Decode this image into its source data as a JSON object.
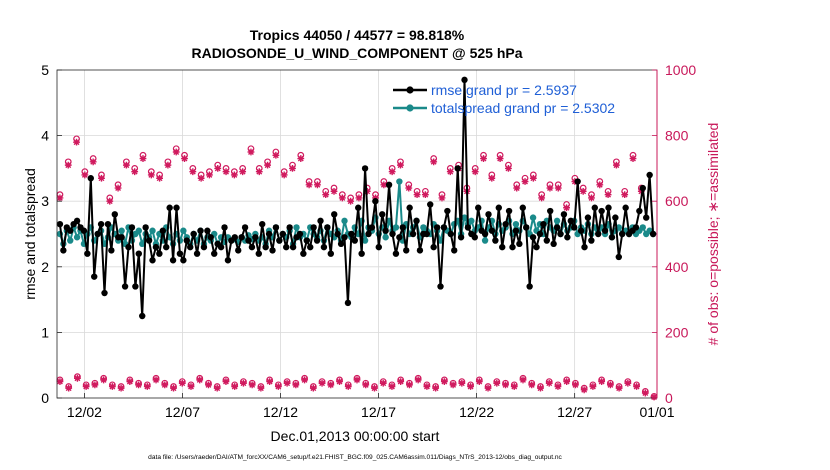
{
  "chart_data": {
    "type": "line",
    "title": "Tropics 44050 / 44577 = 98.818%",
    "subtitle": "RADIOSONDE_U_WIND_COMPONENT @ 525 hPa",
    "xlabel": "Dec.01,2013 00:00:00 start",
    "ylabel_left": "rmse and totalspread",
    "ylabel_right": "# of obs: o=possible; ∗=assimilated",
    "footer": "data file: /Users/raeder/DAI/ATM_forcXX/CAM6_setup/f.e21.FHIST_BGC.f09_025.CAM6assim.011/Diags_NTrS_2013-12/obs_diag_output.nc",
    "xlim": [
      0.6,
      31.2
    ],
    "ylim_left": [
      0,
      5
    ],
    "ylim_right": [
      0,
      1000
    ],
    "grid": true,
    "legend_position": "top-right",
    "x_ticks": [
      {
        "x": 2,
        "label": "12/02"
      },
      {
        "x": 7,
        "label": "12/07"
      },
      {
        "x": 12,
        "label": "12/12"
      },
      {
        "x": 17,
        "label": "12/17"
      },
      {
        "x": 22,
        "label": "12/22"
      },
      {
        "x": 27,
        "label": "12/27"
      },
      {
        "x": 32,
        "label": "01/01"
      }
    ],
    "y_ticks_left": [
      "0",
      "1",
      "2",
      "3",
      "4",
      "5"
    ],
    "y_ticks_right": [
      "0",
      "200",
      "400",
      "600",
      "800",
      "1000"
    ],
    "colors": {
      "rmse": "#000000",
      "spread": "#1a8a8a",
      "obs": "#d01a5e",
      "legend_text": "#1f5fd6",
      "axis_right": "#c8185a",
      "grid": "#d9d9d9"
    },
    "series": [
      {
        "name": "rmse grand pr = 2.5937",
        "axis": "left",
        "values": [
          2.65,
          2.25,
          2.6,
          2.55,
          2.65,
          2.7,
          2.6,
          2.55,
          2.2,
          3.35,
          1.85,
          2.5,
          2.65,
          1.6,
          2.65,
          2.25,
          2.8,
          2.45,
          2.45,
          1.7,
          2.3,
          2.6,
          1.7,
          2.2,
          1.25,
          2.6,
          2.4,
          2.1,
          2.3,
          2.2,
          2.55,
          2.3,
          2.9,
          2.1,
          2.9,
          2.2,
          2.1,
          2.4,
          2.3,
          2.5,
          2.2,
          2.55,
          2.3,
          2.55,
          2.45,
          2.2,
          2.35,
          2.3,
          2.6,
          2.1,
          2.4,
          2.45,
          2.25,
          2.45,
          2.6,
          2.4,
          2.3,
          2.45,
          2.2,
          2.65,
          2.3,
          2.5,
          2.25,
          2.6,
          2.4,
          2.5,
          2.3,
          2.6,
          2.3,
          2.45,
          2.5,
          2.2,
          2.4,
          2.3,
          2.6,
          2.4,
          2.7,
          2.3,
          2.6,
          2.2,
          2.8,
          2.5,
          2.35,
          2.45,
          1.45,
          2.5,
          2.4,
          2.9,
          2.2,
          3.5,
          2.5,
          2.6,
          3.0,
          2.3,
          2.8,
          2.55,
          3.25,
          2.5,
          2.2,
          2.45,
          2.6,
          2.25,
          2.9,
          2.5,
          2.7,
          2.25,
          2.5,
          2.5,
          2.95,
          2.3,
          2.6,
          1.7,
          2.6,
          2.85,
          2.5,
          2.25,
          3.5,
          2.45,
          4.85,
          2.6,
          2.5,
          2.45,
          2.9,
          2.55,
          2.5,
          2.8,
          2.55,
          2.4,
          2.9,
          2.3,
          2.65,
          2.85,
          2.3,
          2.55,
          2.35,
          2.9,
          2.6,
          1.7,
          2.45,
          2.3,
          2.5,
          2.65,
          2.4,
          2.85,
          2.35,
          2.6,
          2.5,
          2.8,
          2.45,
          2.7,
          2.6,
          3.3,
          2.55,
          2.3,
          2.75,
          2.4,
          2.9,
          2.5,
          2.85,
          2.55,
          2.9,
          2.45,
          2.75,
          2.15,
          2.5,
          2.9,
          2.5,
          2.55,
          2.6,
          2.85,
          3.2,
          2.75,
          3.4,
          2.5
        ]
      },
      {
        "name": "totalspread grand pr = 2.5302",
        "axis": "left",
        "values": [
          2.5,
          2.35,
          2.55,
          2.4,
          2.6,
          2.45,
          2.55,
          2.35,
          2.5,
          2.6,
          2.4,
          2.5,
          2.55,
          2.35,
          2.45,
          2.6,
          2.5,
          2.4,
          2.55,
          2.35,
          2.6,
          2.4,
          2.5,
          2.55,
          2.35,
          2.5,
          2.45,
          2.55,
          2.35,
          2.5,
          2.4,
          2.6,
          2.45,
          2.35,
          2.5,
          2.4,
          2.55,
          2.45,
          2.35,
          2.5,
          2.4,
          2.55,
          2.35,
          2.45,
          2.4,
          2.5,
          2.35,
          2.45,
          2.38,
          2.45,
          2.4,
          2.42,
          2.38,
          2.45,
          2.4,
          2.48,
          2.42,
          2.5,
          2.4,
          2.45,
          2.35,
          2.55,
          2.45,
          2.6,
          2.4,
          2.5,
          2.45,
          2.55,
          2.35,
          2.6,
          2.45,
          2.5,
          2.4,
          2.6,
          2.5,
          2.45,
          2.55,
          2.4,
          2.6,
          2.5,
          2.45,
          2.55,
          2.4,
          2.7,
          2.5,
          2.45,
          2.6,
          2.5,
          2.7,
          2.4,
          2.6,
          2.55,
          2.75,
          2.5,
          2.6,
          2.45,
          2.7,
          2.55,
          2.6,
          3.3,
          2.4,
          2.65,
          2.5,
          2.6,
          2.7,
          2.45,
          2.6,
          2.55,
          2.5,
          2.65,
          2.55,
          2.4,
          2.6,
          2.55,
          2.5,
          2.65,
          2.7,
          2.5,
          2.75,
          2.65,
          2.7,
          2.55,
          2.6,
          2.7,
          2.4,
          2.6,
          2.7,
          2.5,
          2.65,
          2.55,
          2.6,
          2.7,
          2.5,
          2.65,
          2.55,
          2.7,
          2.6,
          2.5,
          2.75,
          2.55,
          2.65,
          2.5,
          2.7,
          2.6,
          2.55,
          2.7,
          2.5,
          2.65,
          2.55,
          2.6,
          2.7,
          2.5,
          2.6,
          2.55,
          2.65,
          2.5,
          2.6,
          2.55,
          2.6,
          2.5,
          2.65,
          2.45,
          2.55,
          2.6,
          2.5,
          2.55,
          2.5,
          2.6,
          2.5,
          2.55,
          2.6,
          2.5,
          2.55,
          2.5
        ]
      },
      {
        "name": "obs possible",
        "axis": "right",
        "values": [
          620,
          720,
          790,
          690,
          730,
          680,
          610,
          650,
          720,
          700,
          740,
          690,
          680,
          720,
          760,
          740,
          700,
          680,
          690,
          710,
          700,
          690,
          700,
          760,
          700,
          720,
          750,
          690,
          710,
          740,
          660,
          660,
          630,
          640,
          620,
          610,
          620,
          640,
          620,
          660,
          700,
          720,
          650,
          630,
          630,
          730,
          620,
          700,
          710,
          640,
          700,
          740,
          680,
          740,
          710,
          650,
          670,
          680,
          620,
          650,
          650,
          590,
          670,
          640,
          620,
          660,
          630,
          720,
          630,
          740,
          640
        ]
      },
      {
        "name": "obs assimilated",
        "axis": "right",
        "values": [
          610,
          710,
          780,
          680,
          720,
          670,
          600,
          640,
          710,
          690,
          730,
          680,
          670,
          710,
          750,
          730,
          690,
          670,
          680,
          700,
          690,
          680,
          690,
          750,
          690,
          710,
          740,
          680,
          700,
          730,
          650,
          650,
          620,
          630,
          610,
          600,
          610,
          630,
          610,
          650,
          690,
          710,
          640,
          620,
          620,
          720,
          610,
          690,
          700,
          630,
          690,
          730,
          670,
          730,
          700,
          640,
          660,
          670,
          610,
          640,
          640,
          580,
          660,
          630,
          610,
          650,
          620,
          710,
          620,
          730,
          630
        ]
      },
      {
        "name": "obs possible (lower)",
        "axis": "right",
        "values": [
          55,
          35,
          65,
          40,
          45,
          60,
          40,
          35,
          55,
          45,
          40,
          60,
          45,
          35,
          50,
          40,
          60,
          45,
          35,
          55,
          40,
          50,
          45,
          35,
          55,
          40,
          50,
          45,
          60,
          35,
          50,
          45,
          55,
          40,
          60,
          45,
          35,
          50,
          40,
          55,
          45,
          60,
          40,
          35,
          55,
          45,
          50,
          40,
          55,
          35,
          50,
          45,
          40,
          60,
          45,
          35,
          50,
          40,
          55,
          45,
          30,
          40,
          55,
          45,
          35,
          50,
          40,
          20,
          5
        ]
      },
      {
        "name": "obs assimilated (lower)",
        "axis": "right",
        "values": [
          50,
          30,
          60,
          35,
          40,
          55,
          35,
          30,
          50,
          40,
          35,
          55,
          40,
          30,
          45,
          35,
          55,
          40,
          30,
          50,
          35,
          45,
          40,
          30,
          50,
          35,
          45,
          40,
          55,
          30,
          45,
          40,
          50,
          35,
          55,
          40,
          30,
          45,
          35,
          50,
          40,
          55,
          35,
          30,
          50,
          40,
          45,
          35,
          50,
          30,
          45,
          40,
          35,
          55,
          40,
          30,
          45,
          35,
          50,
          40,
          25,
          35,
          50,
          40,
          30,
          45,
          35,
          15,
          3
        ]
      }
    ]
  }
}
